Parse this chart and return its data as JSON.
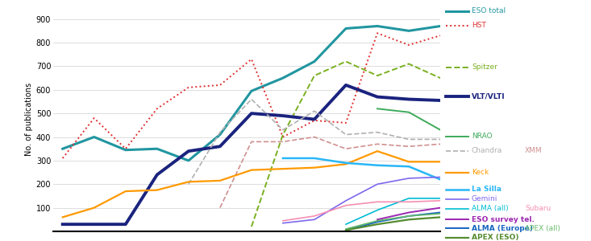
{
  "ylabel": "No. of publications",
  "ylim": [
    0,
    950
  ],
  "yticks": [
    100,
    200,
    300,
    400,
    500,
    600,
    700,
    800,
    900
  ],
  "x": [
    0,
    1,
    2,
    3,
    4,
    5,
    6,
    7,
    8,
    9,
    10,
    11,
    12
  ],
  "series": [
    {
      "name": "ESO total",
      "color": "#2196a0",
      "lw": 2.2,
      "ls": "solid",
      "y": [
        350,
        400,
        345,
        350,
        300,
        410,
        595,
        650,
        720,
        860,
        870,
        850,
        870
      ]
    },
    {
      "name": "HST",
      "color": "#e03030",
      "lw": 1.4,
      "ls": "dotted",
      "y": [
        310,
        480,
        350,
        520,
        610,
        620,
        730,
        400,
        470,
        460,
        840,
        790,
        830
      ]
    },
    {
      "name": "Spitzer",
      "color": "#7ab020",
      "lw": 1.4,
      "ls": "dashed",
      "y": [
        null,
        null,
        null,
        null,
        null,
        null,
        20,
        410,
        660,
        720,
        660,
        710,
        650
      ]
    },
    {
      "name": "VLT/VLTI",
      "color": "#1a237e",
      "lw": 2.8,
      "ls": "solid",
      "y": [
        30,
        30,
        30,
        240,
        340,
        360,
        500,
        490,
        475,
        620,
        570,
        560,
        555
      ]
    },
    {
      "name": "NRAO",
      "color": "#3daa5a",
      "lw": 1.4,
      "ls": "solid",
      "y": [
        null,
        null,
        null,
        null,
        null,
        null,
        null,
        null,
        null,
        null,
        520,
        505,
        430
      ]
    },
    {
      "name": "Chandra",
      "color": "#b0b0b0",
      "lw": 1.2,
      "ls": "dashed",
      "y": [
        null,
        null,
        null,
        null,
        200,
        420,
        560,
        430,
        510,
        410,
        420,
        390,
        390
      ]
    },
    {
      "name": "XMM",
      "color": "#d09090",
      "lw": 1.2,
      "ls": "dashed",
      "y": [
        null,
        null,
        null,
        null,
        null,
        100,
        380,
        380,
        400,
        350,
        370,
        360,
        370
      ]
    },
    {
      "name": "Keck",
      "color": "#ff9900",
      "lw": 1.6,
      "ls": "solid",
      "y": [
        60,
        100,
        170,
        175,
        210,
        215,
        260,
        265,
        270,
        285,
        340,
        295,
        295
      ]
    },
    {
      "name": "La Silla",
      "color": "#29b6f6",
      "lw": 1.8,
      "ls": "solid",
      "y": [
        null,
        null,
        null,
        null,
        null,
        null,
        null,
        310,
        310,
        290,
        280,
        275,
        220
      ]
    },
    {
      "name": "Gemini",
      "color": "#7b68ee",
      "lw": 1.2,
      "ls": "solid",
      "y": [
        null,
        null,
        null,
        null,
        null,
        null,
        null,
        35,
        50,
        130,
        200,
        225,
        230
      ]
    },
    {
      "name": "ALMA (all)",
      "color": "#00bcd4",
      "lw": 1.2,
      "ls": "solid",
      "y": [
        null,
        null,
        null,
        null,
        null,
        null,
        null,
        null,
        null,
        30,
        90,
        140,
        140
      ]
    },
    {
      "name": "Subaru",
      "color": "#f48fb1",
      "lw": 1.2,
      "ls": "solid",
      "y": [
        null,
        null,
        null,
        null,
        null,
        null,
        null,
        45,
        65,
        110,
        125,
        125,
        130
      ]
    },
    {
      "name": "ESO survey tel.",
      "color": "#9c27b0",
      "lw": 1.4,
      "ls": "solid",
      "y": [
        null,
        null,
        null,
        null,
        null,
        null,
        null,
        null,
        null,
        null,
        50,
        80,
        100
      ]
    },
    {
      "name": "ALMA (Europe)",
      "color": "#1565c0",
      "lw": 1.4,
      "ls": "solid",
      "y": [
        null,
        null,
        null,
        null,
        null,
        null,
        null,
        null,
        null,
        5,
        40,
        65,
        80
      ]
    },
    {
      "name": "APEX (all)",
      "color": "#66bb6a",
      "lw": 1.2,
      "ls": "solid",
      "y": [
        null,
        null,
        null,
        null,
        null,
        null,
        null,
        null,
        null,
        10,
        45,
        65,
        75
      ]
    },
    {
      "name": "APEX (ESO)",
      "color": "#558b2f",
      "lw": 1.6,
      "ls": "solid",
      "y": [
        null,
        null,
        null,
        null,
        null,
        null,
        null,
        null,
        null,
        5,
        30,
        50,
        60
      ]
    }
  ],
  "legend": [
    {
      "label": "ESO total",
      "color": "#2196a0",
      "ls": "solid",
      "lw": 2.2,
      "bold": false,
      "row": 0,
      "col": 0
    },
    {
      "label": "HST",
      "color": "#e03030",
      "ls": "dotted",
      "lw": 1.4,
      "bold": false,
      "row": 1,
      "col": 0
    },
    {
      "label": "Spitzer",
      "color": "#7ab020",
      "ls": "dashed",
      "lw": 1.4,
      "bold": false,
      "row": 3,
      "col": 0
    },
    {
      "label": "VLT/VLTI",
      "color": "#1a237e",
      "ls": "solid",
      "lw": 2.8,
      "bold": true,
      "row": 4,
      "col": 0
    },
    {
      "label": "NRAO",
      "color": "#3daa5a",
      "ls": "solid",
      "lw": 1.4,
      "bold": false,
      "row": 6,
      "col": 0
    },
    {
      "label": "Chandra",
      "color": "#b0b0b0",
      "ls": "dashed",
      "lw": 1.2,
      "bold": false,
      "row": 7,
      "col": 0
    },
    {
      "label": "XMM",
      "color": "#d09090",
      "ls": "dashed",
      "lw": 1.2,
      "bold": false,
      "row": 7,
      "col": 1
    },
    {
      "label": "Keck",
      "color": "#ff9900",
      "ls": "solid",
      "lw": 1.6,
      "bold": false,
      "row": 8,
      "col": 0
    },
    {
      "label": "La Silla",
      "color": "#29b6f6",
      "ls": "solid",
      "lw": 1.8,
      "bold": true,
      "row": 9,
      "col": 0
    },
    {
      "label": "Gemini",
      "color": "#7b68ee",
      "ls": "solid",
      "lw": 1.2,
      "bold": false,
      "row": 10,
      "col": 0
    },
    {
      "label": "ALMA (all)",
      "color": "#00bcd4",
      "ls": "solid",
      "lw": 1.2,
      "bold": false,
      "row": 11,
      "col": 0
    },
    {
      "label": "Subaru",
      "color": "#f48fb1",
      "ls": "solid",
      "lw": 1.2,
      "bold": false,
      "row": 11,
      "col": 1
    },
    {
      "label": "ESO survey tel.",
      "color": "#9c27b0",
      "ls": "solid",
      "lw": 1.4,
      "bold": true,
      "row": 12,
      "col": 0
    },
    {
      "label": "ALMA (Europe)",
      "color": "#1565c0",
      "ls": "solid",
      "lw": 1.4,
      "bold": true,
      "row": 13,
      "col": 0
    },
    {
      "label": "APEX (all)",
      "color": "#66bb6a",
      "ls": "solid",
      "lw": 1.2,
      "bold": false,
      "row": 13,
      "col": 1
    },
    {
      "label": "APEX (ESO)",
      "color": "#558b2f",
      "ls": "solid",
      "lw": 1.6,
      "bold": true,
      "row": 14,
      "col": 0
    }
  ],
  "bg_color": "#ffffff",
  "grid_color": "#d0d0d0"
}
